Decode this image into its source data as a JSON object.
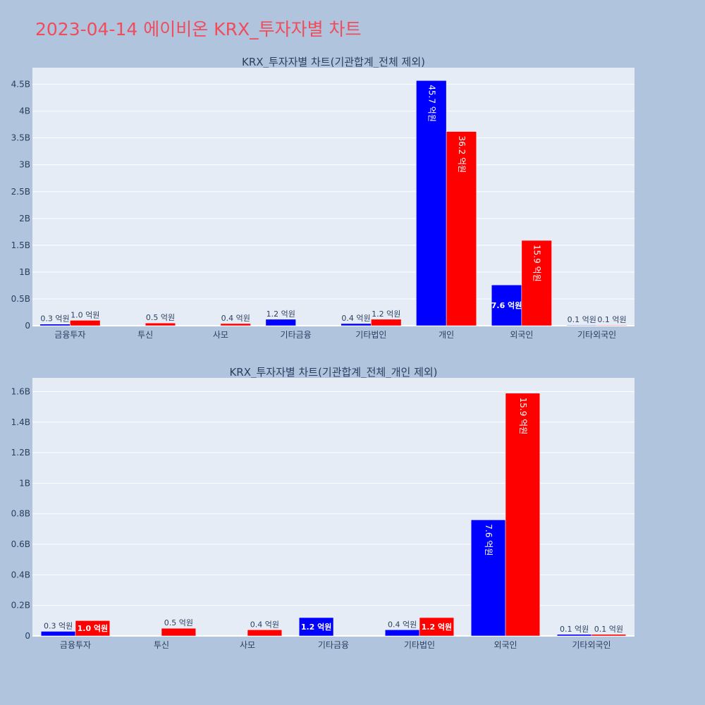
{
  "page": {
    "title": "2023-04-14 에이비온 KRX_투자자별 차트"
  },
  "colors": {
    "page_bg": "#b0c4de",
    "plot_bg": "#e5ecf6",
    "title": "#ef4c5c",
    "series_a": "#0000ff",
    "series_b": "#ff0000",
    "text": "#2a3f5f"
  },
  "chart_data": [
    {
      "type": "bar",
      "title": "KRX_투자자별 차트(기관합계_전체 제외)",
      "categories": [
        "금융투자",
        "투신",
        "사모",
        "기타금융",
        "기타법인",
        "개인",
        "외국인",
        "기타외국인"
      ],
      "series": [
        {
          "color": "#0000ff",
          "values": [
            30000000,
            null,
            null,
            120000000,
            40000000,
            4570000000,
            760000000,
            10000000
          ],
          "labels": [
            "0.3 억원",
            "",
            "",
            "1.2 억원",
            "0.4 억원",
            "45.7 억원",
            "7.6 억원",
            "0.1 억원"
          ]
        },
        {
          "color": "#ff0000",
          "values": [
            100000000,
            50000000,
            40000000,
            null,
            120000000,
            3620000000,
            1590000000,
            10000000
          ],
          "labels": [
            "1.0 억원",
            "0.5 억원",
            "0.4 억원",
            "",
            "1.2 억원",
            "36.2 억원",
            "15.9 억원",
            "0.1 억원"
          ]
        }
      ],
      "yticks": [
        0,
        500000000,
        1000000000,
        1500000000,
        2000000000,
        2500000000,
        3000000000,
        3500000000,
        4000000000,
        4500000000
      ],
      "ytick_labels": [
        "0",
        "0.5B",
        "1B",
        "1.5B",
        "2B",
        "2.5B",
        "3B",
        "3.5B",
        "4B",
        "4.5B"
      ],
      "ylim": [
        0,
        4810000000
      ],
      "grid": true,
      "legend": "none"
    },
    {
      "type": "bar",
      "title": "KRX_투자자별 차트(기관합계_전체_개인 제외)",
      "categories": [
        "금융투자",
        "투신",
        "사모",
        "기타금융",
        "기타법인",
        "외국인",
        "기타외국인"
      ],
      "series": [
        {
          "color": "#0000ff",
          "values": [
            30000000,
            null,
            null,
            120000000,
            40000000,
            760000000,
            10000000
          ],
          "labels": [
            "0.3 억원",
            "",
            "",
            "1.2 억원",
            "0.4 억원",
            "7.6 억원",
            "0.1 억원"
          ]
        },
        {
          "color": "#ff0000",
          "values": [
            100000000,
            50000000,
            40000000,
            null,
            120000000,
            1590000000,
            10000000
          ],
          "labels": [
            "1.0 억원",
            "0.5 억원",
            "0.4 억원",
            "",
            "1.2 억원",
            "15.9 억원",
            "0.1 억원"
          ]
        }
      ],
      "yticks": [
        0,
        200000000,
        400000000,
        600000000,
        800000000,
        1000000000,
        1200000000,
        1400000000,
        1600000000
      ],
      "ytick_labels": [
        "0",
        "0.2B",
        "0.4B",
        "0.6B",
        "0.8B",
        "1B",
        "1.2B",
        "1.4B",
        "1.6B"
      ],
      "ylim": [
        0,
        1690000000
      ],
      "grid": true,
      "legend": "none"
    }
  ]
}
